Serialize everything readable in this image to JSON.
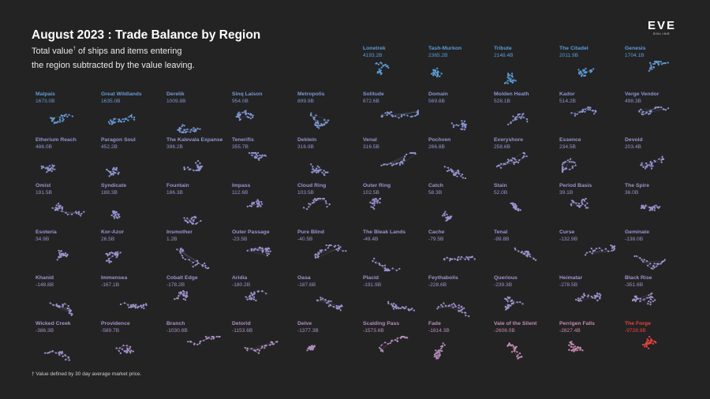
{
  "title": "August 2023 : Trade Balance by Region",
  "subtitle_line1_a": "Total value",
  "subtitle_sup": "†",
  "subtitle_line1_b": " of ships and items entering",
  "subtitle_line2": "the region subtracted by the value leaving.",
  "footnote": "† Value defined by 30 day average market price.",
  "logo": {
    "text": "EVE",
    "subtext": "ONLINE"
  },
  "colors": {
    "background": "#232323",
    "positive": "#5a9bd6",
    "neutral": "#9d93d0",
    "negative": "#c98ab0",
    "extreme": "#e8433f"
  },
  "chart_data": {
    "type": "small-multiples-scatter",
    "title": "August 2023 : Trade Balance by Region",
    "unit": "B",
    "regions": [
      {
        "name": "Lonetrek",
        "value": "4193.2B"
      },
      {
        "name": "Tash-Murkon",
        "value": "2365.2B"
      },
      {
        "name": "Tribute",
        "value": "2148.4B"
      },
      {
        "name": "The Citadel",
        "value": "2011.9B"
      },
      {
        "name": "Genesis",
        "value": "1704.1B"
      },
      {
        "name": "Malpais",
        "value": "1673.0B"
      },
      {
        "name": "Great Wildlands",
        "value": "1635.0B"
      },
      {
        "name": "Derelik",
        "value": "1009.8B"
      },
      {
        "name": "Sinq Laison",
        "value": "954.0B"
      },
      {
        "name": "Metropolis",
        "value": "899.9B"
      },
      {
        "name": "Solitude",
        "value": "672.6B"
      },
      {
        "name": "Domain",
        "value": "569.8B"
      },
      {
        "name": "Molden Heath",
        "value": "528.1B"
      },
      {
        "name": "Kador",
        "value": "514.2B"
      },
      {
        "name": "Verge Vendor",
        "value": "498.3B"
      },
      {
        "name": "Etherium Reach",
        "value": "486.0B"
      },
      {
        "name": "Paragon Soul",
        "value": "452.2B"
      },
      {
        "name": "The Kalevala Expanse",
        "value": "396.2B"
      },
      {
        "name": "Tenerifis",
        "value": "355.7B"
      },
      {
        "name": "Deklein",
        "value": "316.9B"
      },
      {
        "name": "Venal",
        "value": "316.5B"
      },
      {
        "name": "Pochven",
        "value": "266.8B"
      },
      {
        "name": "Everyshore",
        "value": "258.6B"
      },
      {
        "name": "Essence",
        "value": "234.5B"
      },
      {
        "name": "Devoid",
        "value": "203.4B"
      },
      {
        "name": "Omist",
        "value": "191.5B"
      },
      {
        "name": "Syndicate",
        "value": "188.3B"
      },
      {
        "name": "Fountain",
        "value": "186.3B"
      },
      {
        "name": "Impass",
        "value": "112.6B"
      },
      {
        "name": "Cloud Ring",
        "value": "103.5B"
      },
      {
        "name": "Outer Ring",
        "value": "102.5B"
      },
      {
        "name": "Catch",
        "value": "58.3B"
      },
      {
        "name": "Stain",
        "value": "52.0B"
      },
      {
        "name": "Period Basis",
        "value": "39.1B"
      },
      {
        "name": "The Spire",
        "value": "36.0B"
      },
      {
        "name": "Esoteria",
        "value": "34.9B"
      },
      {
        "name": "Kor-Azor",
        "value": "26.5B"
      },
      {
        "name": "Insmother",
        "value": "1.2B"
      },
      {
        "name": "Outer Passage",
        "value": "-23.5B"
      },
      {
        "name": "Pure Blind",
        "value": "-40.5B"
      },
      {
        "name": "The Bleak Lands",
        "value": "-49.4B"
      },
      {
        "name": "Cache",
        "value": "-79.5B"
      },
      {
        "name": "Tenal",
        "value": "-99.8B"
      },
      {
        "name": "Curse",
        "value": "-132.9B"
      },
      {
        "name": "Geminate",
        "value": "-138.0B"
      },
      {
        "name": "Khanid",
        "value": "-148.8B"
      },
      {
        "name": "Immensea",
        "value": "-167.1B"
      },
      {
        "name": "Cobalt Edge",
        "value": "-178.2B"
      },
      {
        "name": "Aridia",
        "value": "-180.2B"
      },
      {
        "name": "Oasa",
        "value": "-187.6B"
      },
      {
        "name": "Placid",
        "value": "-191.9B"
      },
      {
        "name": "Feythabolis",
        "value": "-228.6B"
      },
      {
        "name": "Querious",
        "value": "-239.3B"
      },
      {
        "name": "Heimatar",
        "value": "-278.5B"
      },
      {
        "name": "Black Rise",
        "value": "-351.6B"
      },
      {
        "name": "Wicked Creek",
        "value": "-386.3B"
      },
      {
        "name": "Providence",
        "value": "-589.7B"
      },
      {
        "name": "Branch",
        "value": "-1030.8B"
      },
      {
        "name": "Detorid",
        "value": "-1153.6B"
      },
      {
        "name": "Delve",
        "value": "-1377.3B"
      },
      {
        "name": "Scalding Pass",
        "value": "-1573.6B"
      },
      {
        "name": "Fade",
        "value": "-1814.3B"
      },
      {
        "name": "Vale of the Silent",
        "value": "-2606.0B"
      },
      {
        "name": "Perrigen Falls",
        "value": "-2827.4B"
      },
      {
        "name": "The Forge",
        "value": "-9728.9B"
      }
    ]
  }
}
